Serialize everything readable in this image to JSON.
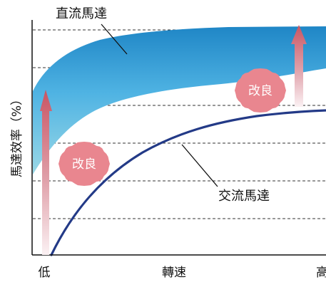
{
  "labels": {
    "dc_motor": "直流馬達",
    "ac_motor": "交流馬達",
    "y_axis": "馬達效率（%）",
    "x_axis": "轉速",
    "x_low": "低",
    "x_high": "高",
    "improve_left": "改良",
    "improve_right": "改良"
  },
  "colors": {
    "band_top": "#1f86c6",
    "band_mid": "#4fb3e3",
    "band_bottom": "#8fd3e6",
    "ac_curve": "#233a87",
    "arrow_top": "#c95a66",
    "arrow_bottom": "#f6e3e6",
    "badge": "#e9868f",
    "grid": "#333333"
  }
}
